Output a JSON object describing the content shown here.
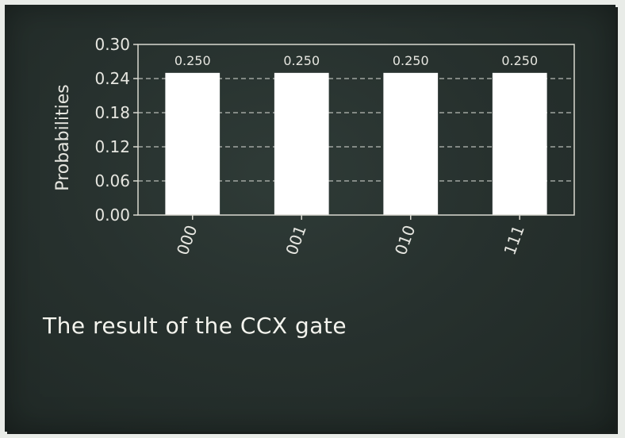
{
  "chart_data": {
    "type": "bar",
    "categories": [
      "000",
      "001",
      "010",
      "111"
    ],
    "values": [
      0.25,
      0.25,
      0.25,
      0.25
    ],
    "data_labels": [
      "0.250",
      "0.250",
      "0.250",
      "0.250"
    ],
    "title": "",
    "xlabel": "",
    "ylabel": "Probabilities",
    "ylim": [
      0,
      0.3
    ],
    "yticks": [
      0.0,
      0.06,
      0.12,
      0.18,
      0.24,
      0.3
    ],
    "ytick_labels": [
      "0.00",
      "0.06",
      "0.12",
      "0.18",
      "0.24",
      "0.30"
    ],
    "grid": "horizontal dashed",
    "colors": {
      "bar": "#ffffff",
      "axis": "#d9d9d0",
      "grid": "#b8bcb6",
      "text": "#e6e6e0"
    }
  },
  "caption": "The result of the CCX gate"
}
